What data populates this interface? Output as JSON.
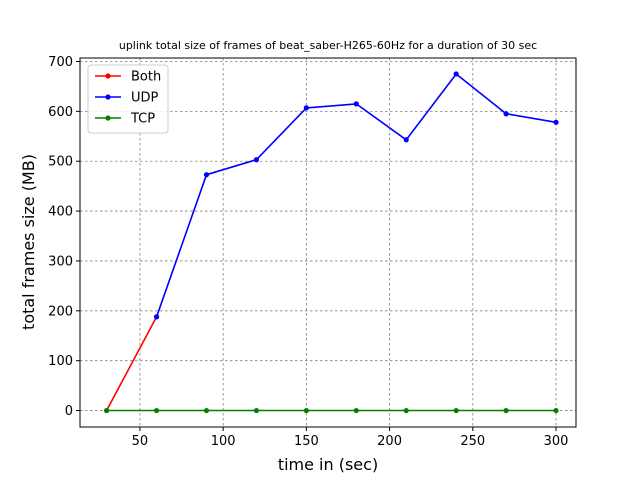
{
  "chart_data": {
    "type": "line",
    "title": "uplink total size of frames of beat_saber-H265-60Hz for a duration of 30 sec",
    "xlabel": "time in (sec)",
    "ylabel": "total frames size (MB)",
    "xlim": [
      14,
      312
    ],
    "ylim": [
      -33,
      707
    ],
    "xticks": [
      50,
      100,
      150,
      200,
      250,
      300
    ],
    "yticks": [
      0,
      100,
      200,
      300,
      400,
      500,
      600,
      700
    ],
    "grid": true,
    "legend_position": "top-left",
    "series": [
      {
        "name": "Both",
        "color": "#ff0000",
        "x": [
          30,
          60
        ],
        "y": [
          0,
          188
        ]
      },
      {
        "name": "UDP",
        "color": "#0000ff",
        "x": [
          60,
          90,
          120,
          150,
          180,
          210,
          240,
          270,
          300
        ],
        "y": [
          188,
          473,
          503,
          607,
          615,
          543,
          675,
          595,
          578
        ]
      },
      {
        "name": "TCP",
        "color": "#008000",
        "x": [
          30,
          60,
          90,
          120,
          150,
          180,
          210,
          240,
          270,
          300
        ],
        "y": [
          0,
          0,
          0,
          0,
          0,
          0,
          0,
          0,
          0,
          0
        ]
      }
    ]
  }
}
